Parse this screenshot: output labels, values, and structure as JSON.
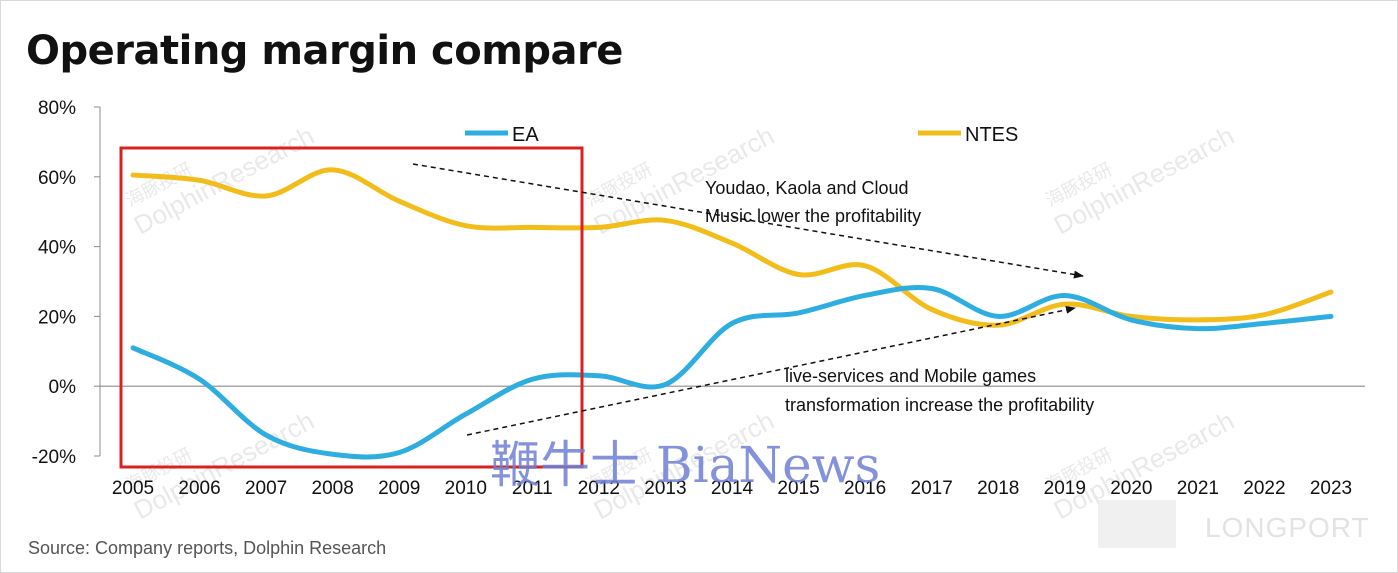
{
  "title": "Operating margin compare",
  "source": "Source: Company reports, Dolphin Research",
  "watermarks": {
    "research": "DolphinResearch",
    "research_cn": "海豚投研",
    "bianews": "鞭牛士 BiaNews",
    "longport": "LONGPORT"
  },
  "colors": {
    "EA": "#2eaee0",
    "NTES": "#f2bd1b",
    "highlight_box": "#d92121"
  },
  "annotations": {
    "ntes_note_line1": "Youdao, Kaola and Cloud",
    "ntes_note_line2": "Music lower the profitability",
    "ea_note_line1": "live-services and Mobile games",
    "ea_note_line2": "transformation increase the profitability"
  },
  "chart_data": {
    "type": "line",
    "title": "Operating margin compare",
    "x": [
      "2005",
      "2006",
      "2007",
      "2008",
      "2009",
      "2010",
      "2011",
      "2012",
      "2013",
      "2014",
      "2015",
      "2016",
      "2017",
      "2018",
      "2019",
      "2020",
      "2021",
      "2022",
      "2023"
    ],
    "yticks": [
      "80%",
      "60%",
      "40%",
      "20%",
      "0%",
      "-20%"
    ],
    "ylim": [
      -20,
      80
    ],
    "ylabel": "",
    "xlabel": "",
    "legend_position": "top",
    "series": [
      {
        "name": "EA",
        "values": [
          11,
          2,
          -14,
          -19.5,
          -19,
          -8,
          2,
          3,
          0.5,
          18,
          21,
          26,
          28,
          20,
          26,
          19,
          16.5,
          18,
          20
        ]
      },
      {
        "name": "NTES",
        "values": [
          60.5,
          59,
          54.5,
          62,
          53,
          46,
          45.5,
          45.5,
          47.5,
          41,
          32,
          34.5,
          22,
          17.5,
          23.5,
          20,
          19,
          20.5,
          27
        ]
      }
    ]
  }
}
